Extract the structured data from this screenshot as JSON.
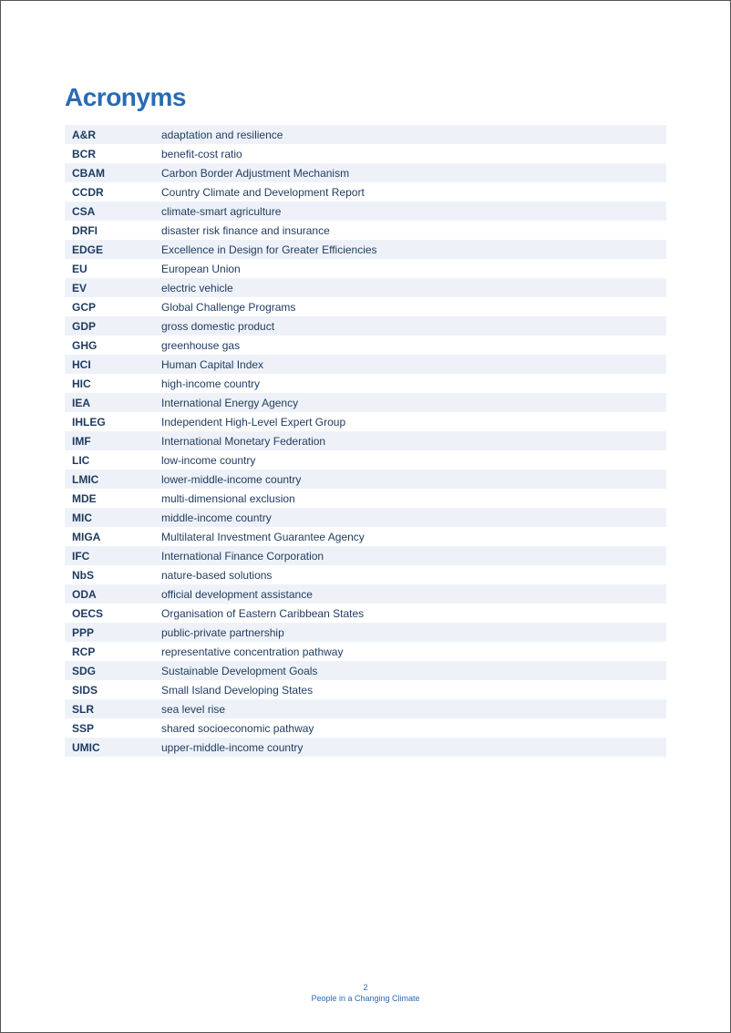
{
  "title": "Acronyms",
  "title_color": "#2a6bb3",
  "text_color": "#1e3a5f",
  "row_odd_bg": "#eef2f8",
  "row_even_bg": "#ffffff",
  "acronym_fontsize": 12,
  "definition_fontsize": 12,
  "rows": [
    {
      "acronym": "A&R",
      "definition": "adaptation and resilience"
    },
    {
      "acronym": "BCR",
      "definition": "benefit-cost ratio"
    },
    {
      "acronym": "CBAM",
      "definition": "Carbon Border Adjustment Mechanism"
    },
    {
      "acronym": "CCDR",
      "definition": "Country Climate and Development Report"
    },
    {
      "acronym": "CSA",
      "definition": "climate-smart agriculture"
    },
    {
      "acronym": "DRFI",
      "definition": "disaster risk finance and insurance"
    },
    {
      "acronym": "EDGE",
      "definition": "Excellence in Design for Greater Efficiencies"
    },
    {
      "acronym": "EU",
      "definition": "European Union"
    },
    {
      "acronym": "EV",
      "definition": "electric vehicle"
    },
    {
      "acronym": "GCP",
      "definition": "Global Challenge Programs"
    },
    {
      "acronym": "GDP",
      "definition": "gross domestic product"
    },
    {
      "acronym": "GHG",
      "definition": "greenhouse gas"
    },
    {
      "acronym": "HCI",
      "definition": "Human Capital Index"
    },
    {
      "acronym": "HIC",
      "definition": "high-income country"
    },
    {
      "acronym": "IEA",
      "definition": "International Energy Agency"
    },
    {
      "acronym": "IHLEG",
      "definition": "Independent High-Level Expert Group"
    },
    {
      "acronym": "IMF",
      "definition": "International Monetary Federation"
    },
    {
      "acronym": "LIC",
      "definition": "low-income country"
    },
    {
      "acronym": "LMIC",
      "definition": "lower-middle-income country"
    },
    {
      "acronym": "MDE",
      "definition": "multi-dimensional exclusion"
    },
    {
      "acronym": "MIC",
      "definition": "middle-income country"
    },
    {
      "acronym": "MIGA",
      "definition": "Multilateral Investment Guarantee Agency"
    },
    {
      "acronym": "IFC",
      "definition": "International Finance Corporation"
    },
    {
      "acronym": "NbS",
      "definition": "nature-based solutions"
    },
    {
      "acronym": "ODA",
      "definition": "official development assistance"
    },
    {
      "acronym": "OECS",
      "definition": "Organisation of Eastern Caribbean States"
    },
    {
      "acronym": "PPP",
      "definition": "public-private partnership"
    },
    {
      "acronym": "RCP",
      "definition": "representative concentration pathway"
    },
    {
      "acronym": "SDG",
      "definition": "Sustainable Development Goals"
    },
    {
      "acronym": "SIDS",
      "definition": "Small Island Developing States"
    },
    {
      "acronym": "SLR",
      "definition": "sea level rise"
    },
    {
      "acronym": "SSP",
      "definition": "shared socioeconomic pathway"
    },
    {
      "acronym": "UMIC",
      "definition": "upper-middle-income country"
    }
  ],
  "footer": {
    "page_number": "2",
    "subtitle": "People in a Changing Climate"
  }
}
